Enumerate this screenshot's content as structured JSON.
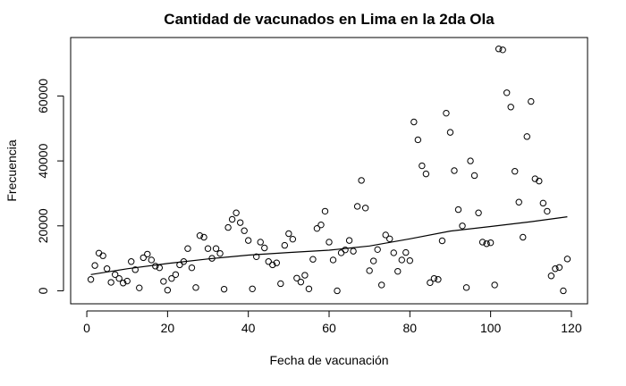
{
  "chart_data": {
    "type": "scatter",
    "title": "Cantidad de vacunados en Lima en la 2da Ola",
    "xlabel": "Fecha de vacunación",
    "ylabel": "Frecuencia",
    "xlim": [
      -4,
      124
    ],
    "ylim": [
      -4000,
      78000
    ],
    "xticks": [
      0,
      20,
      40,
      60,
      80,
      100,
      120
    ],
    "yticks": [
      0,
      20000,
      40000,
      60000
    ],
    "grid": false,
    "legend": "none",
    "point_style": "open-circle",
    "color": "#000000",
    "points": [
      [
        1,
        3500
      ],
      [
        2,
        7800
      ],
      [
        3,
        11600
      ],
      [
        4,
        10800
      ],
      [
        5,
        6800
      ],
      [
        6,
        2600
      ],
      [
        7,
        5000
      ],
      [
        8,
        3800
      ],
      [
        9,
        2400
      ],
      [
        10,
        3000
      ],
      [
        11,
        9000
      ],
      [
        12,
        6500
      ],
      [
        13,
        900
      ],
      [
        14,
        10200
      ],
      [
        15,
        11300
      ],
      [
        16,
        9500
      ],
      [
        17,
        7600
      ],
      [
        18,
        7100
      ],
      [
        19,
        2900
      ],
      [
        20,
        200
      ],
      [
        21,
        3800
      ],
      [
        22,
        5000
      ],
      [
        23,
        8000
      ],
      [
        24,
        9000
      ],
      [
        25,
        13000
      ],
      [
        26,
        7100
      ],
      [
        27,
        1000
      ],
      [
        28,
        17000
      ],
      [
        29,
        16500
      ],
      [
        30,
        13000
      ],
      [
        31,
        10000
      ],
      [
        32,
        13000
      ],
      [
        33,
        11500
      ],
      [
        34,
        500
      ],
      [
        35,
        19500
      ],
      [
        36,
        22000
      ],
      [
        37,
        24000
      ],
      [
        38,
        21000
      ],
      [
        39,
        18500
      ],
      [
        40,
        15500
      ],
      [
        41,
        600
      ],
      [
        42,
        10500
      ],
      [
        43,
        15000
      ],
      [
        44,
        13200
      ],
      [
        45,
        9000
      ],
      [
        46,
        8000
      ],
      [
        47,
        8600
      ],
      [
        48,
        2200
      ],
      [
        49,
        14000
      ],
      [
        50,
        17600
      ],
      [
        51,
        15900
      ],
      [
        52,
        3900
      ],
      [
        53,
        2700
      ],
      [
        54,
        4800
      ],
      [
        55,
        600
      ],
      [
        56,
        9700
      ],
      [
        57,
        19200
      ],
      [
        58,
        20300
      ],
      [
        59,
        24500
      ],
      [
        60,
        15000
      ],
      [
        61,
        9500
      ],
      [
        62,
        0
      ],
      [
        63,
        11700
      ],
      [
        64,
        12600
      ],
      [
        65,
        15500
      ],
      [
        66,
        12200
      ],
      [
        67,
        26000
      ],
      [
        68,
        34000
      ],
      [
        69,
        25500
      ],
      [
        70,
        6200
      ],
      [
        71,
        9200
      ],
      [
        72,
        12700
      ],
      [
        73,
        1800
      ],
      [
        74,
        17200
      ],
      [
        75,
        16000
      ],
      [
        76,
        11700
      ],
      [
        77,
        6000
      ],
      [
        78,
        9500
      ],
      [
        79,
        11800
      ],
      [
        80,
        9300
      ],
      [
        81,
        52000
      ],
      [
        82,
        46500
      ],
      [
        83,
        38500
      ],
      [
        84,
        36000
      ],
      [
        85,
        2500
      ],
      [
        86,
        3800
      ],
      [
        87,
        3500
      ],
      [
        88,
        15400
      ],
      [
        89,
        54700
      ],
      [
        90,
        48800
      ],
      [
        91,
        37000
      ],
      [
        92,
        25000
      ],
      [
        93,
        20000
      ],
      [
        94,
        1000
      ],
      [
        95,
        40000
      ],
      [
        96,
        35500
      ],
      [
        97,
        24000
      ],
      [
        98,
        15000
      ],
      [
        99,
        14500
      ],
      [
        100,
        14800
      ],
      [
        101,
        1800
      ],
      [
        102,
        74500
      ],
      [
        103,
        74200
      ],
      [
        104,
        61000
      ],
      [
        105,
        56600
      ],
      [
        106,
        36800
      ],
      [
        107,
        27300
      ],
      [
        108,
        16500
      ],
      [
        109,
        47500
      ],
      [
        110,
        58300
      ],
      [
        111,
        34500
      ],
      [
        112,
        33800
      ],
      [
        113,
        27000
      ],
      [
        114,
        24500
      ],
      [
        115,
        4600
      ],
      [
        116,
        6800
      ],
      [
        117,
        7200
      ],
      [
        118,
        0
      ],
      [
        119,
        9800
      ]
    ],
    "smooth_line": [
      [
        1,
        5000
      ],
      [
        10,
        6800
      ],
      [
        20,
        8400
      ],
      [
        30,
        9800
      ],
      [
        40,
        11000
      ],
      [
        50,
        11800
      ],
      [
        60,
        12500
      ],
      [
        70,
        13800
      ],
      [
        80,
        16000
      ],
      [
        90,
        18400
      ],
      [
        100,
        19800
      ],
      [
        110,
        21300
      ],
      [
        119,
        22800
      ]
    ]
  }
}
